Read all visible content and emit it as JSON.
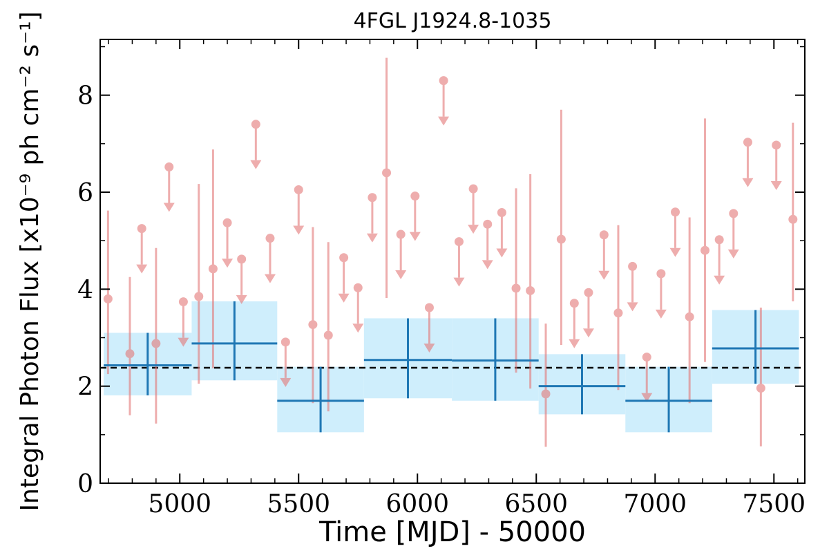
{
  "chart_data": {
    "type": "scatter",
    "title": "4FGL J1924.8-1035",
    "xlabel": "Time [MJD] - 50000",
    "ylabel": "Integral Photon Flux [x10⁻⁹ ph cm⁻² s⁻¹]",
    "xlim": [
      4665,
      7630
    ],
    "ylim": [
      0,
      9.15
    ],
    "xticks": [
      5000,
      5500,
      6000,
      6500,
      7000,
      7500
    ],
    "yticks": [
      0,
      2,
      4,
      6,
      8
    ],
    "grid": false,
    "colors": {
      "bins": "#1f77b4",
      "band": "#cfeefc",
      "points": "#e37777",
      "mean": "#000000"
    },
    "mean_flux": 2.38,
    "bins": [
      {
        "x_start": 4680,
        "x_end": 5050,
        "flux": 2.43,
        "err_low": 1.81,
        "err_high": 3.1
      },
      {
        "x_start": 5050,
        "x_end": 5410,
        "flux": 2.88,
        "err_low": 2.12,
        "err_high": 3.75
      },
      {
        "x_start": 5410,
        "x_end": 5775,
        "flux": 1.7,
        "err_low": 1.05,
        "err_high": 2.4
      },
      {
        "x_start": 5775,
        "x_end": 6145,
        "flux": 2.54,
        "err_low": 1.75,
        "err_high": 3.4
      },
      {
        "x_start": 6145,
        "x_end": 6510,
        "flux": 2.53,
        "err_low": 1.7,
        "err_high": 3.4
      },
      {
        "x_start": 6510,
        "x_end": 6875,
        "flux": 2.0,
        "err_low": 1.42,
        "err_high": 2.66
      },
      {
        "x_start": 6875,
        "x_end": 7240,
        "flux": 1.7,
        "err_low": 1.05,
        "err_high": 2.4
      },
      {
        "x_start": 7240,
        "x_end": 7605,
        "flux": 2.78,
        "err_low": 2.05,
        "err_high": 3.57
      }
    ],
    "detections": [
      {
        "x": 4698,
        "y": 3.8,
        "low": 2.25,
        "high": 5.62
      },
      {
        "x": 4790,
        "y": 2.67,
        "low": 1.4,
        "high": 4.25
      },
      {
        "x": 4900,
        "y": 2.88,
        "low": 1.23,
        "high": 4.85
      },
      {
        "x": 5080,
        "y": 3.85,
        "low": 2.05,
        "high": 6.17
      },
      {
        "x": 5140,
        "y": 4.42,
        "low": 2.37,
        "high": 6.88
      },
      {
        "x": 5560,
        "y": 3.27,
        "low": 1.65,
        "high": 5.28
      },
      {
        "x": 5625,
        "y": 3.05,
        "low": 1.48,
        "high": 4.97
      },
      {
        "x": 5870,
        "y": 6.4,
        "low": 3.82,
        "high": 8.77
      },
      {
        "x": 6415,
        "y": 4.02,
        "low": 2.28,
        "high": 6.08
      },
      {
        "x": 6475,
        "y": 3.97,
        "low": 1.95,
        "high": 6.37
      },
      {
        "x": 6540,
        "y": 1.84,
        "low": 0.75,
        "high": 3.29
      },
      {
        "x": 6605,
        "y": 5.03,
        "low": 2.85,
        "high": 7.7
      },
      {
        "x": 6845,
        "y": 3.51,
        "low": 1.92,
        "high": 5.32
      },
      {
        "x": 7145,
        "y": 3.43,
        "low": 1.65,
        "high": 5.48
      },
      {
        "x": 7210,
        "y": 4.8,
        "low": 2.5,
        "high": 7.52
      },
      {
        "x": 7445,
        "y": 1.96,
        "low": 0.76,
        "high": 3.62
      },
      {
        "x": 7580,
        "y": 5.44,
        "low": 3.75,
        "high": 7.43
      }
    ],
    "upper_limits": [
      {
        "x": 4840,
        "y": 5.25
      },
      {
        "x": 4955,
        "y": 6.52
      },
      {
        "x": 5015,
        "y": 3.74
      },
      {
        "x": 5200,
        "y": 5.37
      },
      {
        "x": 5260,
        "y": 4.62
      },
      {
        "x": 5320,
        "y": 7.4
      },
      {
        "x": 5380,
        "y": 5.05
      },
      {
        "x": 5445,
        "y": 2.91
      },
      {
        "x": 5500,
        "y": 6.05
      },
      {
        "x": 5690,
        "y": 4.65
      },
      {
        "x": 5750,
        "y": 4.03
      },
      {
        "x": 5810,
        "y": 5.89
      },
      {
        "x": 5930,
        "y": 5.13
      },
      {
        "x": 5990,
        "y": 5.92
      },
      {
        "x": 6050,
        "y": 3.62
      },
      {
        "x": 6110,
        "y": 8.3
      },
      {
        "x": 6175,
        "y": 4.98
      },
      {
        "x": 6235,
        "y": 6.07
      },
      {
        "x": 6295,
        "y": 5.34
      },
      {
        "x": 6355,
        "y": 5.58
      },
      {
        "x": 6660,
        "y": 3.71
      },
      {
        "x": 6720,
        "y": 3.93
      },
      {
        "x": 6785,
        "y": 5.12
      },
      {
        "x": 6905,
        "y": 4.47
      },
      {
        "x": 6965,
        "y": 2.6
      },
      {
        "x": 7025,
        "y": 4.32
      },
      {
        "x": 7085,
        "y": 5.59
      },
      {
        "x": 7270,
        "y": 5.02
      },
      {
        "x": 7330,
        "y": 5.56
      },
      {
        "x": 7390,
        "y": 7.03
      },
      {
        "x": 7510,
        "y": 6.97
      }
    ]
  }
}
